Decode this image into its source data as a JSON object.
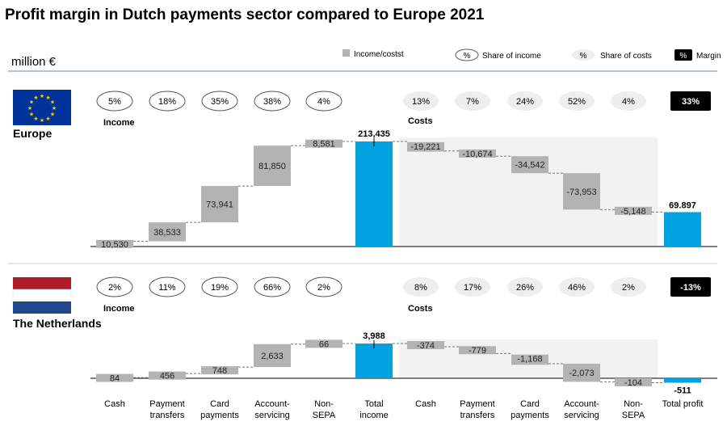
{
  "chart_data": {
    "type": "waterfall",
    "title": "Profit margin in Dutch payments sector compared to Europe 2021",
    "unit": "million €",
    "legend": {
      "bar": "Income/costst",
      "income_share": "Share of income",
      "costs_share": "Share of costs",
      "margin": "Margin",
      "symbol": "%"
    },
    "categories": [
      "Cash",
      "Payment transfers",
      "Card payments",
      "Account-servicing",
      "Non-SEPA",
      "Total income",
      "Cash",
      "Payment transfers",
      "Card payments",
      "Account-servicing",
      "Non-SEPA",
      "Total profit"
    ],
    "category_lines": [
      [
        "Cash"
      ],
      [
        "Payment",
        "transfers"
      ],
      [
        "Card",
        "payments"
      ],
      [
        "Account-",
        "servicing"
      ],
      [
        "Non-",
        "SEPA"
      ],
      [
        "Total",
        "income"
      ],
      [
        "Cash"
      ],
      [
        "Payment",
        "transfers"
      ],
      [
        "Card",
        "payments"
      ],
      [
        "Account-",
        "servicing"
      ],
      [
        "Non-",
        "SEPA"
      ],
      [
        "Total profit"
      ]
    ],
    "income_label": "Income",
    "costs_label": "Costs",
    "colors": {
      "bar": "#b3b3b3",
      "total": "#00a3e0",
      "shade": "#f2f2f2"
    },
    "panels": [
      {
        "name": "Europe",
        "flag": "eu",
        "income": [
          10530,
          38533,
          73941,
          81850,
          8581
        ],
        "income_labels": [
          "10,530",
          "38,533",
          "73,941",
          "81,850",
          "8,581"
        ],
        "total_income": 213435,
        "total_income_label": "213,435",
        "costs": [
          -19221,
          -10674,
          -34542,
          -73953,
          -5148
        ],
        "costs_labels": [
          "-19,221",
          "-10,674",
          "-34,542",
          "-73,953",
          "-5,148"
        ],
        "profit": 69897,
        "profit_label": "69.897",
        "income_shares": [
          "5%",
          "18%",
          "35%",
          "38%",
          "4%"
        ],
        "costs_shares": [
          "13%",
          "7%",
          "24%",
          "52%",
          "4%"
        ],
        "margin": "33%"
      },
      {
        "name": "The Netherlands",
        "flag": "nl",
        "income": [
          84,
          456,
          748,
          2633,
          66
        ],
        "income_labels": [
          "84",
          "456",
          "748",
          "2,633",
          "66"
        ],
        "total_income": 3988,
        "total_income_label": "3,988",
        "costs": [
          -374,
          -779,
          -1168,
          -2073,
          -104
        ],
        "costs_labels": [
          "-374",
          "-779",
          "-1,168",
          "-2,073",
          "-104"
        ],
        "profit": -511,
        "profit_label": "-511",
        "income_shares": [
          "2%",
          "11%",
          "19%",
          "66%",
          "2%"
        ],
        "costs_shares": [
          "8%",
          "17%",
          "26%",
          "46%",
          "2%"
        ],
        "margin": "-13%"
      }
    ]
  }
}
